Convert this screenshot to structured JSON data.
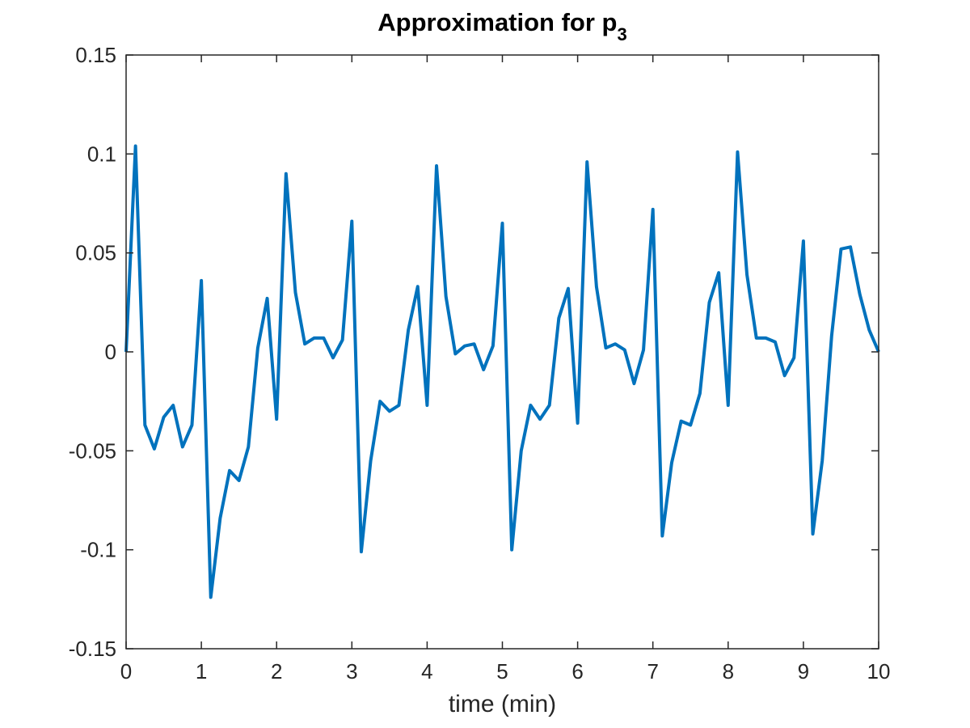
{
  "chart_data": {
    "type": "line",
    "title": "Approximation for p",
    "title_subscript": "3",
    "xlabel": "time (min)",
    "ylabel": "",
    "xlim": [
      0,
      10
    ],
    "ylim": [
      -0.15,
      0.15
    ],
    "xticks": [
      "0",
      "1",
      "2",
      "3",
      "4",
      "5",
      "6",
      "7",
      "8",
      "9",
      "10"
    ],
    "yticks": [
      "-0.15",
      "-0.1",
      "-0.05",
      "0",
      "0.05",
      "0.1",
      "0.15"
    ],
    "grid": false,
    "colors": {
      "line": "#0072BD",
      "axes": "#262626"
    },
    "series": [
      {
        "x": [
          0,
          0.125,
          0.25,
          0.375,
          0.5,
          0.625,
          0.75,
          0.875,
          1.0,
          1.125,
          1.25,
          1.375,
          1.5,
          1.625,
          1.75,
          1.875,
          2.0,
          2.125,
          2.25,
          2.375,
          2.5,
          2.625,
          2.75,
          2.875,
          3.0,
          3.125,
          3.25,
          3.375,
          3.5,
          3.625,
          3.75,
          3.875,
          4.0,
          4.125,
          4.25,
          4.375,
          4.5,
          4.625,
          4.75,
          4.875,
          5.0,
          5.125,
          5.25,
          5.375,
          5.5,
          5.625,
          5.75,
          5.875,
          6.0,
          6.125,
          6.25,
          6.375,
          6.5,
          6.625,
          6.75,
          6.875,
          7.0,
          7.125,
          7.25,
          7.375,
          7.5,
          7.625,
          7.75,
          7.875,
          8.0,
          8.125,
          8.25,
          8.375,
          8.5,
          8.625,
          8.75,
          8.875,
          9.0,
          9.125,
          9.25,
          9.375,
          9.5,
          9.625,
          9.75,
          9.875,
          10.0
        ],
        "values": [
          0,
          0.104,
          -0.037,
          -0.049,
          -0.033,
          -0.027,
          -0.048,
          -0.037,
          0.036,
          -0.124,
          -0.084,
          -0.06,
          -0.065,
          -0.048,
          0.002,
          0.027,
          -0.034,
          0.09,
          0.03,
          0.004,
          0.007,
          0.007,
          -0.003,
          0.006,
          0.066,
          -0.101,
          -0.055,
          -0.025,
          -0.03,
          -0.027,
          0.011,
          0.033,
          -0.027,
          0.094,
          0.028,
          -0.001,
          0.003,
          0.004,
          -0.009,
          0.003,
          0.065,
          -0.1,
          -0.05,
          -0.027,
          -0.034,
          -0.027,
          0.017,
          0.032,
          -0.036,
          0.096,
          0.033,
          0.002,
          0.004,
          0.001,
          -0.016,
          0.001,
          0.072,
          -0.093,
          -0.056,
          -0.035,
          -0.037,
          -0.021,
          0.025,
          0.04,
          -0.027,
          0.101,
          0.039,
          0.007,
          0.007,
          0.005,
          -0.012,
          -0.003,
          0.056,
          -0.092,
          -0.055,
          0.008,
          0.052,
          0.053,
          0.029,
          0.011,
          0
        ]
      }
    ]
  }
}
